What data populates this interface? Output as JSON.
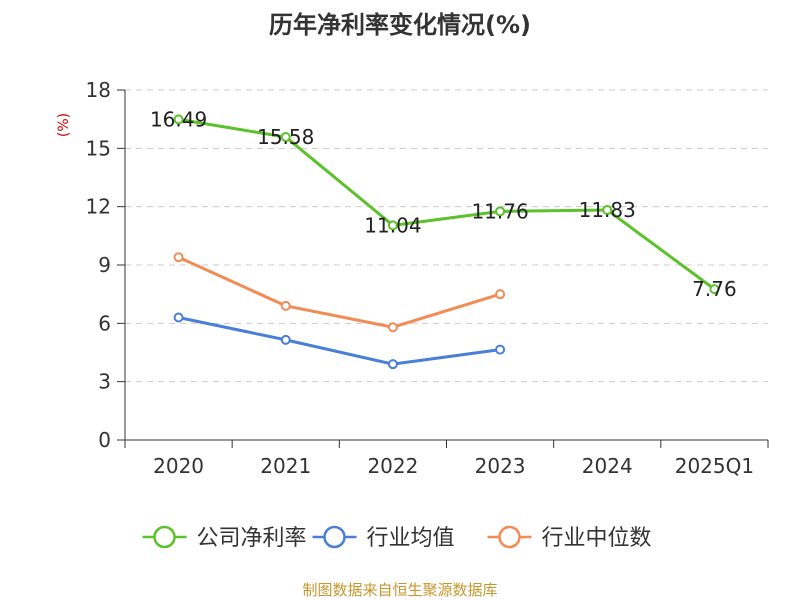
{
  "chart_data": {
    "type": "line",
    "title": "历年净利率变化情况(%)",
    "ylabel": "(%)",
    "xlabel": "",
    "categories": [
      "2020",
      "2021",
      "2022",
      "2023",
      "2024",
      "2025Q1"
    ],
    "ylim": [
      0,
      18
    ],
    "yticks": [
      0,
      3,
      6,
      9,
      12,
      15,
      18
    ],
    "grid": "horizontal dashed",
    "legend_position": "bottom",
    "series": [
      {
        "name": "公司净利率",
        "color": "#5cc12b",
        "values": [
          16.49,
          15.58,
          11.04,
          11.76,
          11.83,
          7.76
        ],
        "labels": [
          "16.49",
          "15.58",
          "11.04",
          "11.76",
          "11.83",
          "7.76"
        ]
      },
      {
        "name": "行业均值",
        "color": "#4a7fd6",
        "values": [
          6.3,
          5.15,
          3.9,
          4.65,
          null,
          null
        ]
      },
      {
        "name": "行业中位数",
        "color": "#f28c54",
        "values": [
          9.4,
          6.9,
          5.8,
          7.5,
          null,
          null
        ]
      }
    ]
  },
  "source_text": "制图数据来自恒生聚源数据库"
}
